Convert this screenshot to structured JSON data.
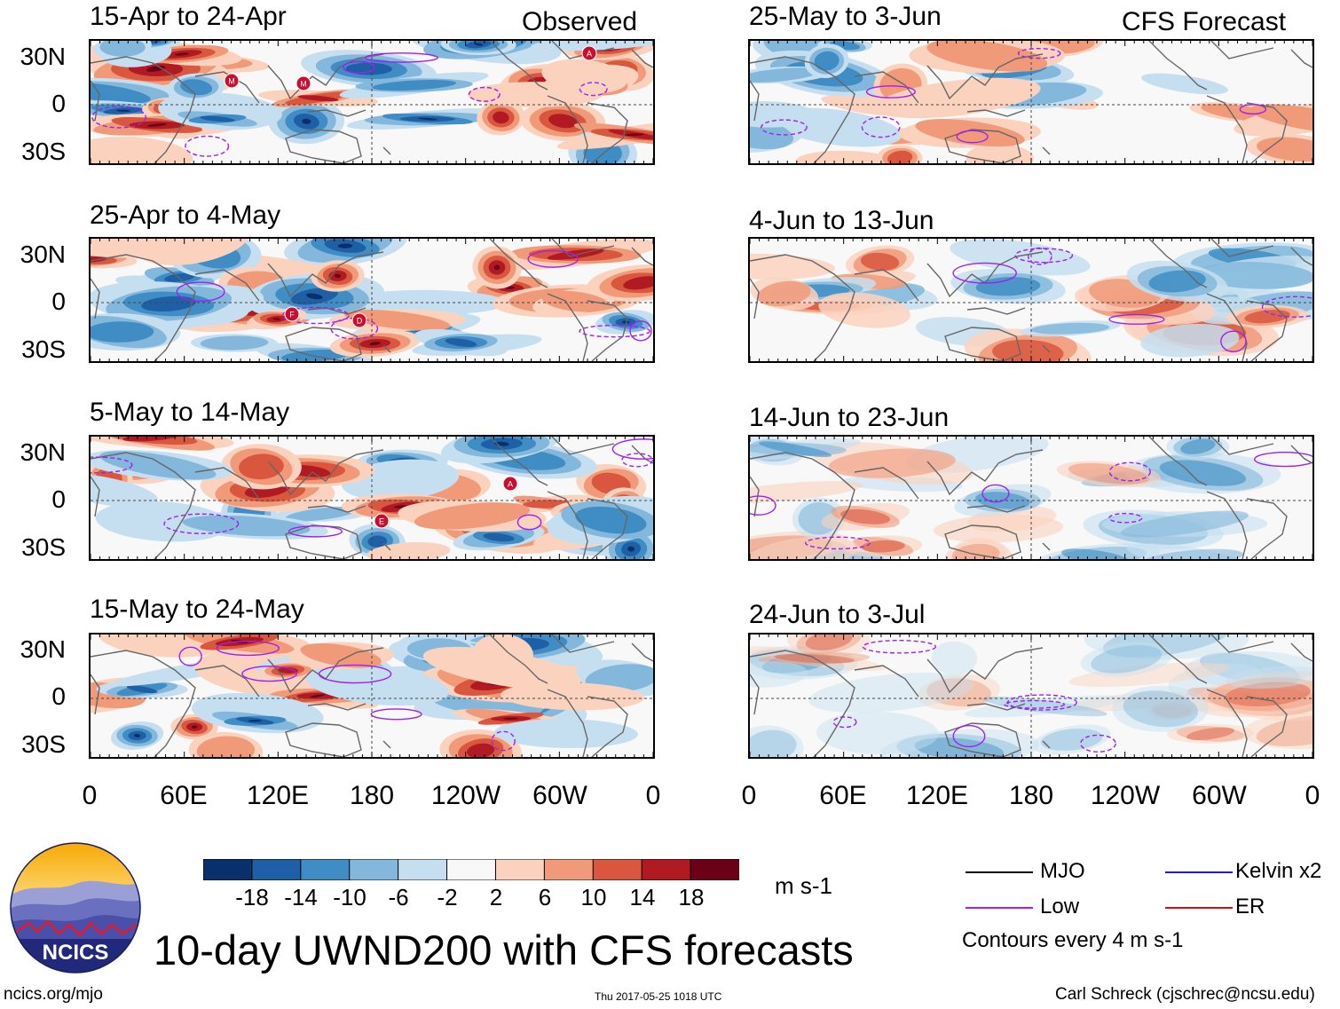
{
  "colors": {
    "mjo": "#000000",
    "low": "#a020f0",
    "kelvin": "#2020c0",
    "er": "#d01010",
    "colorbar": [
      "#08306b",
      "#1f5fa6",
      "#3f8dc4",
      "#83b8dc",
      "#c6dff0",
      "#f8f8f8",
      "#fbd2be",
      "#f09a7a",
      "#d9573f",
      "#b11a23",
      "#6b0116"
    ]
  },
  "headers": {
    "observed": "Observed",
    "forecast": "CFS Forecast"
  },
  "observed_panels": [
    {
      "title": "15-Apr to 24-Apr",
      "storms": [
        "M",
        "M",
        "A"
      ]
    },
    {
      "title": "25-Apr to 4-May",
      "storms": [
        "F",
        "D"
      ]
    },
    {
      "title": "5-May to 14-May",
      "storms": [
        "A",
        "E"
      ]
    },
    {
      "title": "15-May to 24-May",
      "storms": []
    }
  ],
  "forecast_panels": [
    {
      "title": "25-May to 3-Jun"
    },
    {
      "title": "4-Jun to 13-Jun"
    },
    {
      "title": "14-Jun to 23-Jun"
    },
    {
      "title": "24-Jun to 3-Jul"
    }
  ],
  "lat_labels": [
    "30N",
    "0",
    "30S"
  ],
  "lon_labels": [
    "0",
    "60E",
    "120E",
    "180",
    "120W",
    "60W",
    "0"
  ],
  "colorbar": {
    "labels": [
      "-18",
      "-14",
      "-10",
      "-6",
      "-2",
      "2",
      "6",
      "10",
      "14",
      "18"
    ],
    "units": "m s-1"
  },
  "legend": {
    "mjo": "MJO",
    "kelvin": "Kelvin x2",
    "low": "Low",
    "er": "ER",
    "contours": "Contours every 4 m s-1"
  },
  "logo_text": "NCICS",
  "main_title": "10-day UWND200 with CFS forecasts",
  "footer": {
    "url": "ncics.org/mjo",
    "timestamp": "Thu 2017-05-25 1018 UTC",
    "author": "Carl Schreck (cjschrec@ncsu.edu)"
  }
}
